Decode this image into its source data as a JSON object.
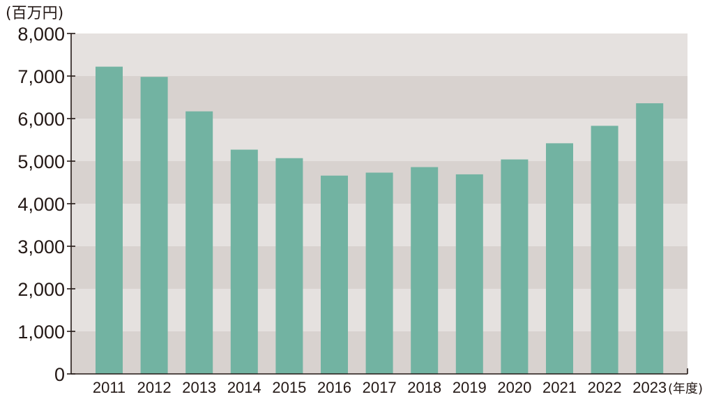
{
  "chart_data": {
    "type": "bar",
    "ylabel": "(百万円)",
    "xlabel": "(年度)",
    "categories": [
      "2011",
      "2012",
      "2013",
      "2014",
      "2015",
      "2016",
      "2017",
      "2018",
      "2019",
      "2020",
      "2021",
      "2022",
      "2023"
    ],
    "values": [
      7220,
      6980,
      6170,
      5270,
      5070,
      4660,
      4730,
      4860,
      4690,
      5040,
      5420,
      5830,
      6360
    ],
    "ylim": [
      0,
      8000
    ],
    "yticks": [
      "0",
      "1,000",
      "2,000",
      "3,000",
      "4,000",
      "5,000",
      "6,000",
      "7,000",
      "8,000"
    ],
    "grid": "alternating bands",
    "colors": {
      "bar": "#72b3a2",
      "band_light": "#e5e1df",
      "band_dark": "#d8d2cf",
      "axis": "#231815"
    }
  }
}
